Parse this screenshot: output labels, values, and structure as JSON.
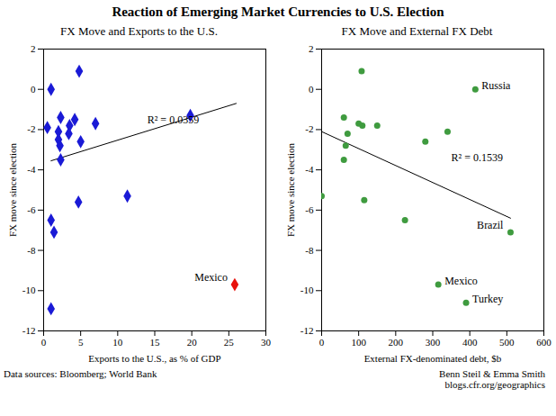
{
  "title": "Reaction of Emerging Market Currencies to U.S. Election",
  "source": "Data sources: Bloomberg; World Bank",
  "credit": [
    "Benn Steil & Emma Smith",
    "blogs.cfr.org/geographics"
  ],
  "chart_data": [
    {
      "type": "scatter",
      "title": "FX Move and Exports to the U.S.",
      "x_label": "Exports to the U.S., as % of GDP",
      "y_label": "FX move since election",
      "x": [
        1.0,
        4.8,
        0.5,
        2.3,
        4.2,
        3.5,
        7.0,
        19.8,
        2.0,
        3.4,
        5.0,
        2.0,
        2.2,
        2.3,
        11.3,
        4.7,
        1.0,
        1.4,
        1.0,
        25.8
      ],
      "values": [
        0.0,
        0.9,
        -1.9,
        -1.4,
        -1.5,
        -1.8,
        -1.7,
        -1.3,
        -2.1,
        -2.2,
        -2.6,
        -2.5,
        -2.8,
        -3.5,
        -5.3,
        -5.6,
        -6.5,
        -7.1,
        -10.9,
        -9.7
      ],
      "point_labels": [
        null,
        null,
        null,
        null,
        null,
        null,
        null,
        null,
        null,
        null,
        null,
        null,
        null,
        null,
        null,
        null,
        null,
        null,
        null,
        "Mexico"
      ],
      "colors": [
        "#1a1ad6",
        "#1a1ad6",
        "#1a1ad6",
        "#1a1ad6",
        "#1a1ad6",
        "#1a1ad6",
        "#1a1ad6",
        "#1a1ad6",
        "#1a1ad6",
        "#1a1ad6",
        "#1a1ad6",
        "#1a1ad6",
        "#1a1ad6",
        "#1a1ad6",
        "#1a1ad6",
        "#1a1ad6",
        "#1a1ad6",
        "#1a1ad6",
        "#1a1ad6",
        "#e8120c"
      ],
      "marker": "diamond",
      "trendline": {
        "x": [
          1,
          26
        ],
        "values": [
          -3.55,
          -0.7
        ]
      },
      "annotations": [
        {
          "text": "R² = 0.0359",
          "x": 14,
          "y": -1.5
        }
      ],
      "xlim": [
        0,
        30
      ],
      "xticks": [
        0,
        5,
        10,
        15,
        20,
        25,
        30
      ],
      "ylim": [
        -12,
        2
      ],
      "yticks": [
        -12,
        -10,
        -8,
        -6,
        -4,
        -2,
        0,
        2
      ],
      "grid": false
    },
    {
      "type": "scatter",
      "title": "FX Move and External FX Debt",
      "x_label": "External FX-denominated debt, $b",
      "y_label": "FX move since election",
      "x": [
        0,
        108,
        415,
        60,
        100,
        110,
        150,
        340,
        70,
        65,
        280,
        60,
        115,
        225,
        510,
        315,
        390
      ],
      "values": [
        -5.3,
        0.9,
        0.0,
        -1.4,
        -1.7,
        -1.8,
        -1.8,
        -2.1,
        -2.2,
        -2.8,
        -2.6,
        -3.5,
        -5.5,
        -6.5,
        -7.1,
        -9.7,
        -10.6
      ],
      "point_labels": [
        null,
        null,
        "Russia",
        null,
        null,
        null,
        null,
        null,
        null,
        null,
        null,
        null,
        null,
        null,
        "Brazil",
        "Mexico",
        "Turkey"
      ],
      "color": "#3f9b3f",
      "marker": "circle",
      "trendline": {
        "x": [
          0,
          510
        ],
        "values": [
          -2.1,
          -6.4
        ]
      },
      "annotations": [
        {
          "text": "R² = 0.1539",
          "x": 350,
          "y": -3.4
        }
      ],
      "xlim": [
        0,
        600
      ],
      "xticks": [
        0,
        100,
        200,
        300,
        400,
        500,
        600
      ],
      "ylim": [
        -12,
        2
      ],
      "yticks": [
        -12,
        -10,
        -8,
        -6,
        -4,
        -2,
        0,
        2
      ],
      "grid": false
    }
  ]
}
